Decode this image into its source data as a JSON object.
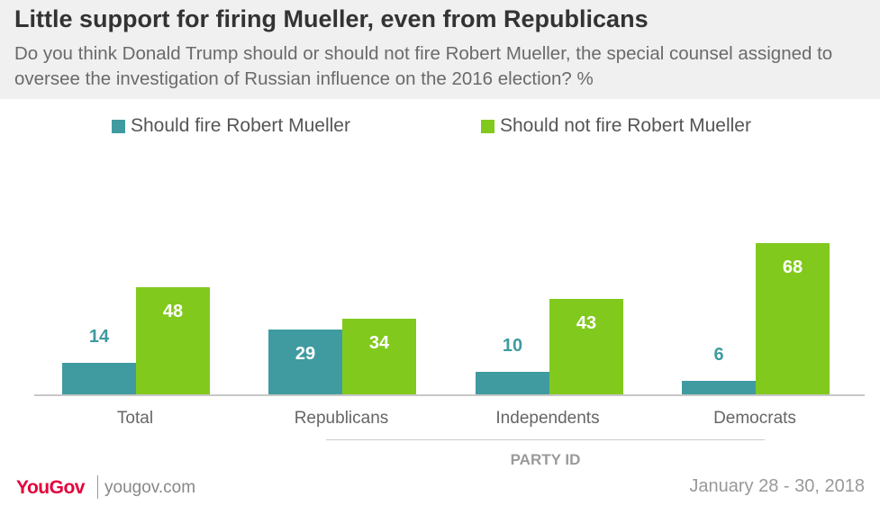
{
  "header": {
    "title": "Little support for firing Mueller, even from Republicans",
    "subtitle": "Do you think Donald Trump should or should not fire Robert Mueller, the special counsel assigned to oversee the investigation of Russian influence on the 2016 election? %"
  },
  "colors": {
    "should_fire": "#3f9ba0",
    "should_not_fire": "#82c91e",
    "should_fire_label_outside": "#3f9ba0",
    "label_inside": "#ffffff"
  },
  "chart_data": {
    "type": "bar",
    "categories": [
      "Total",
      "Republicans",
      "Independents",
      "Democrats"
    ],
    "series": [
      {
        "name": "Should fire Robert Mueller",
        "values": [
          14,
          29,
          10,
          6
        ]
      },
      {
        "name": "Should not fire Robert Mueller",
        "values": [
          48,
          34,
          43,
          68
        ]
      }
    ],
    "ylim": [
      0,
      70
    ],
    "grid": false,
    "legend": "top-left",
    "group_label": "PARTY ID"
  },
  "footer": {
    "brand": "YouGov",
    "url": "yougov.com",
    "date": "January 28 - 30, 2018"
  }
}
